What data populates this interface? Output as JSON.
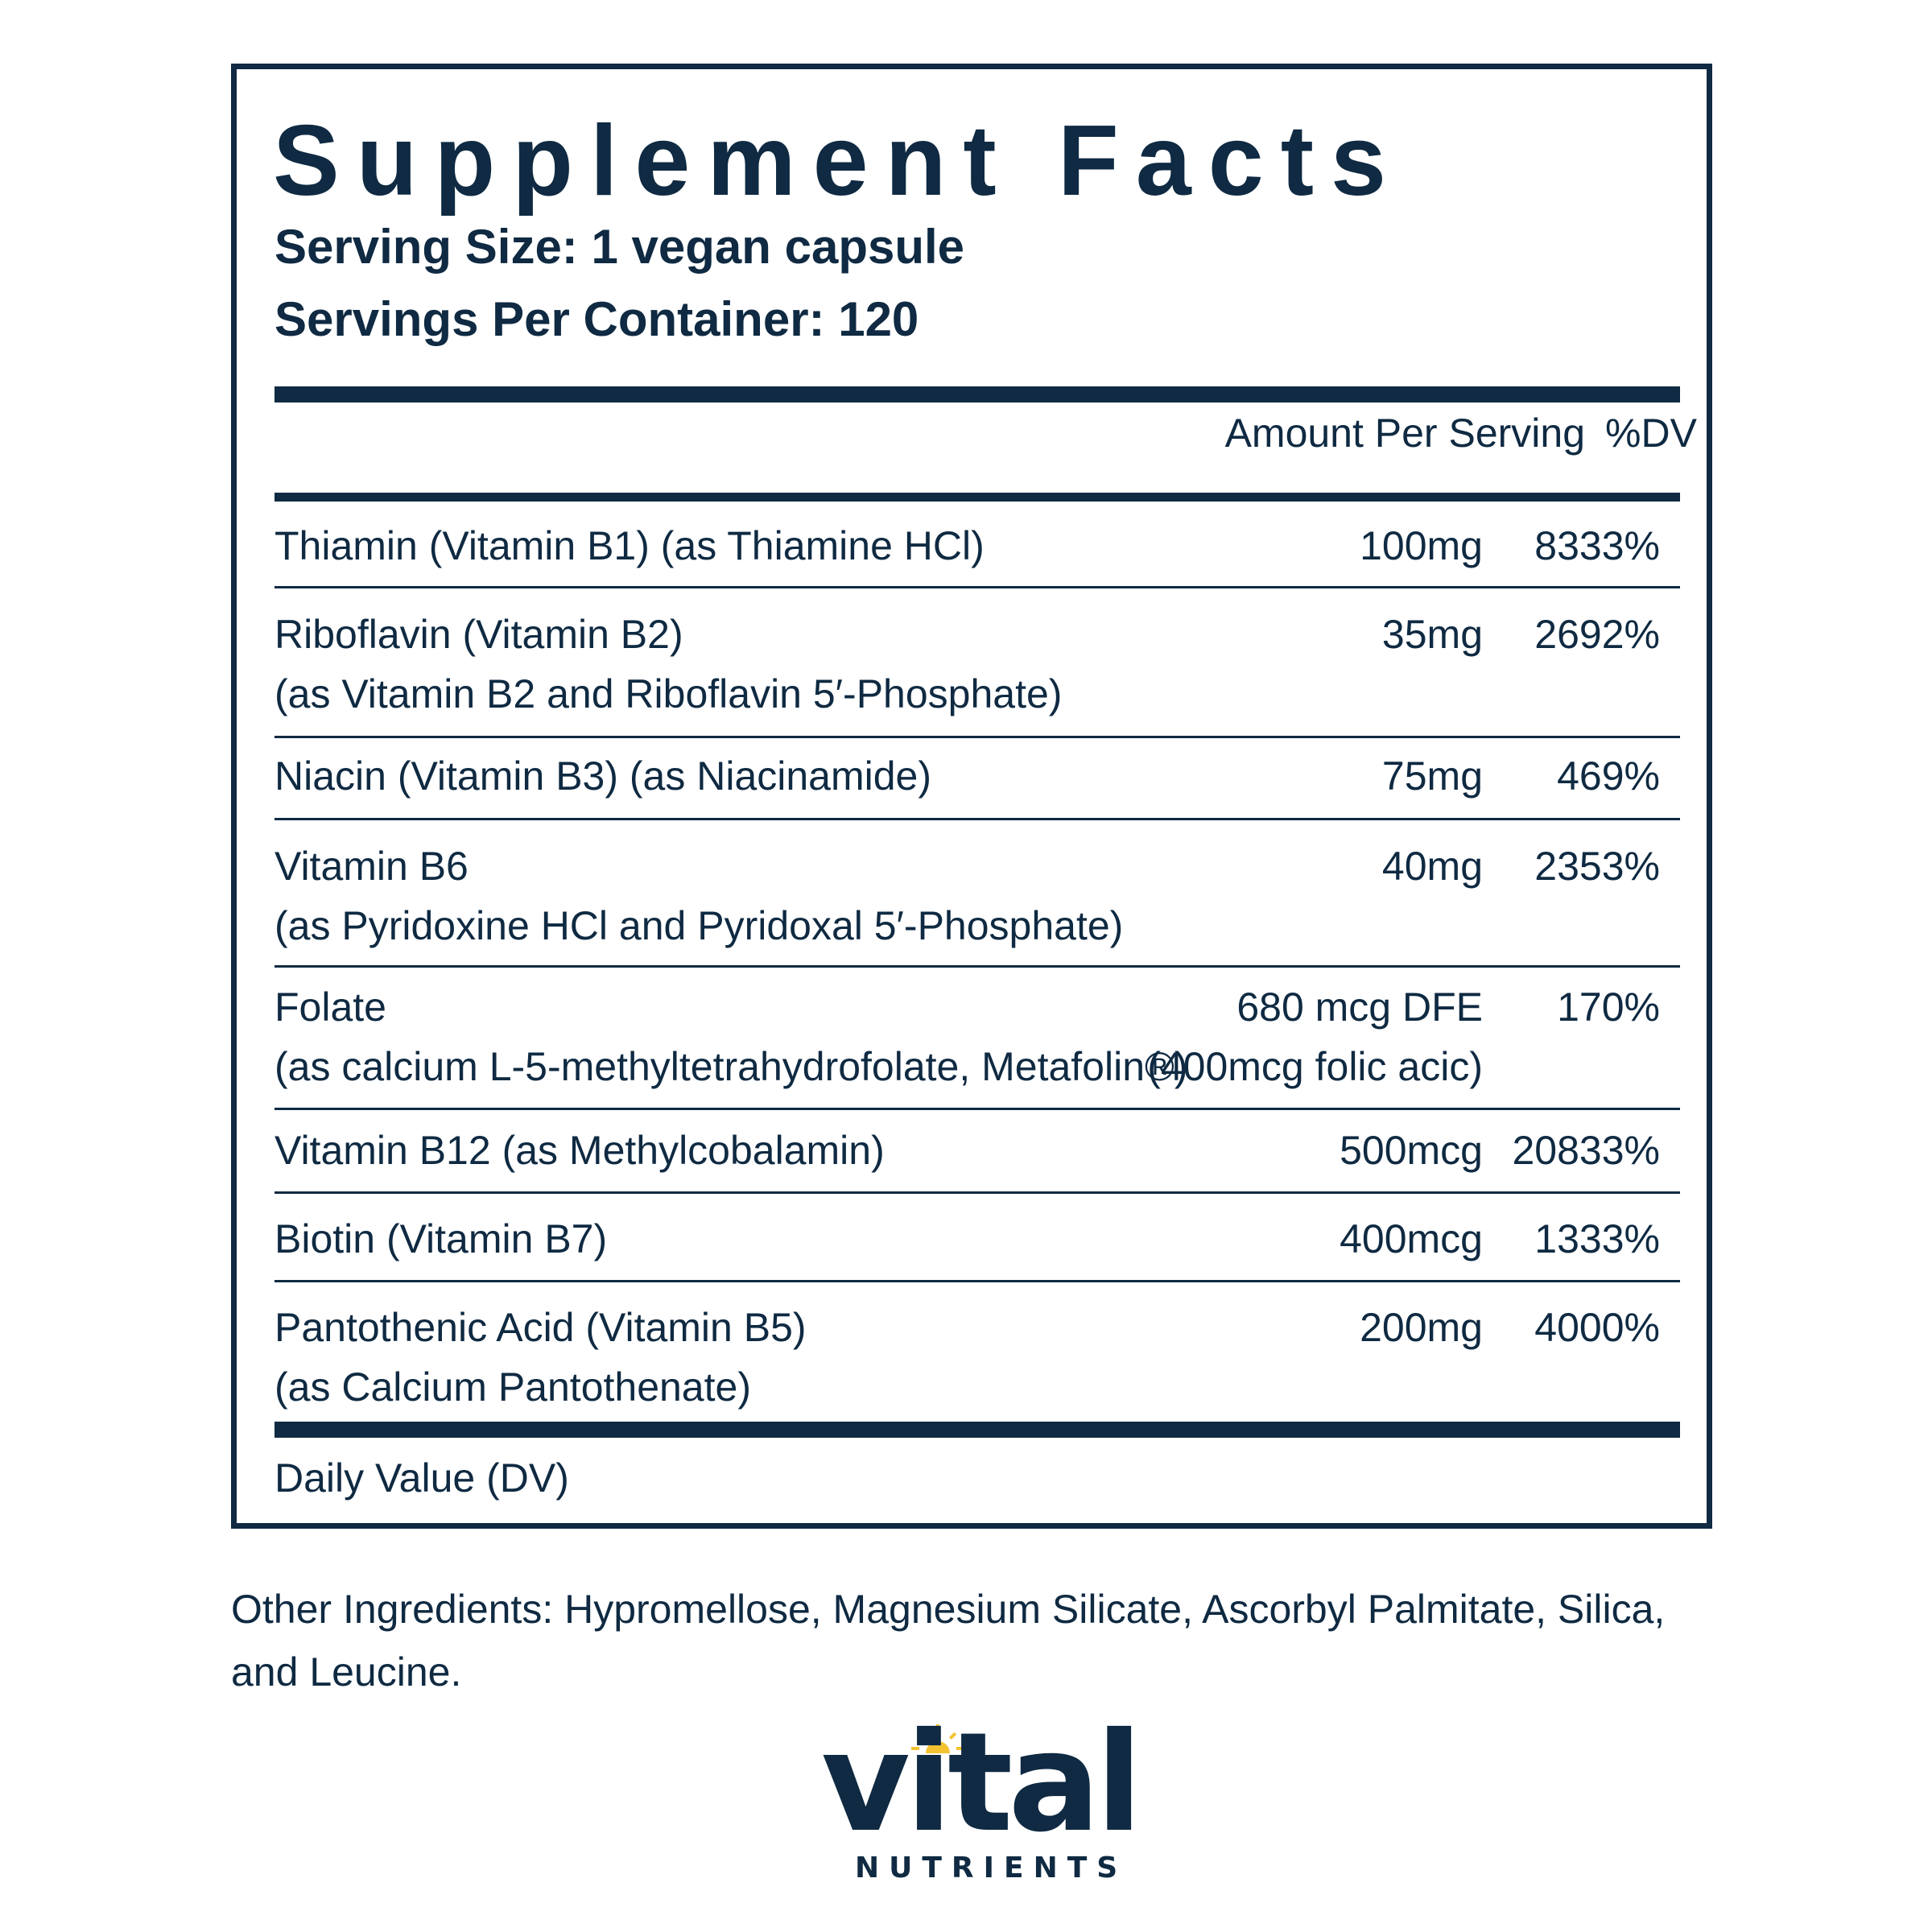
{
  "label": {
    "title": "Supplement Facts",
    "serving_size": "Serving Size: 1 vegan capsule",
    "servings_per_container": "Servings Per Container: 120",
    "col_amount": "Amount Per Serving",
    "col_dv": "%DV",
    "rows": [
      {
        "name": "Thiamin (Vitamin B1) (as Thiamine HCl)",
        "sub": "",
        "amount": "100mg",
        "amount2": "",
        "dv": "8333%"
      },
      {
        "name": "Riboflavin (Vitamin B2)",
        "sub": "(as Vitamin B2 and Riboflavin 5′-Phosphate)",
        "amount": "35mg",
        "amount2": "",
        "dv": "2692%"
      },
      {
        "name": "Niacin (Vitamin B3) (as Niacinamide)",
        "sub": "",
        "amount": "75mg",
        "amount2": "",
        "dv": "469%"
      },
      {
        "name": "Vitamin B6",
        "sub": "(as Pyridoxine HCl and Pyridoxal 5′-Phosphate)",
        "amount": "40mg",
        "amount2": "",
        "dv": "2353%"
      },
      {
        "name": "Folate",
        "sub": "(as calcium L-5-methyltetrahydrofolate, Metafolin®)",
        "amount": "680 mcg  DFE",
        "amount2": "(400mcg folic acic)",
        "dv": "170%"
      },
      {
        "name": "Vitamin B12 (as Methylcobalamin)",
        "sub": "",
        "amount": "500mcg",
        "amount2": "",
        "dv": "20833%"
      },
      {
        "name": "Biotin (Vitamin B7)",
        "sub": "",
        "amount": "400mcg",
        "amount2": "",
        "dv": "1333%"
      },
      {
        "name": "Pantothenic Acid (Vitamin B5)",
        "sub": "(as Calcium Pantothenate)",
        "amount": "200mg",
        "amount2": "",
        "dv": "4000%"
      }
    ],
    "footnote": "Daily Value (DV)"
  },
  "other_ingredients": "Other Ingredients: Hypromellose, Magnesium Silicate, Ascorbyl Palmitate, Silica, and Leucine.",
  "brand": {
    "name": "vital",
    "subtitle": "NUTRIENTS",
    "accent_color": "#f2c230",
    "text_color": "#0f2a42"
  }
}
